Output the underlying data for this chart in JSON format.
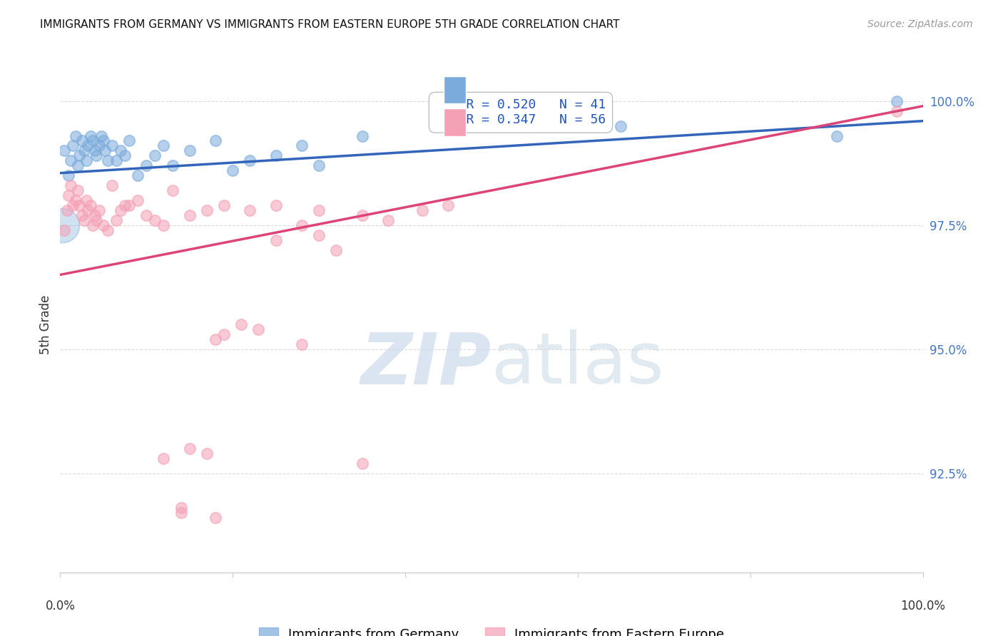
{
  "title": "IMMIGRANTS FROM GERMANY VS IMMIGRANTS FROM EASTERN EUROPE 5TH GRADE CORRELATION CHART",
  "source": "Source: ZipAtlas.com",
  "ylabel": "5th Grade",
  "xlim": [
    0.0,
    1.0
  ],
  "ylim": [
    90.5,
    100.5
  ],
  "blue_scatter_x": [
    0.005,
    0.01,
    0.012,
    0.015,
    0.018,
    0.02,
    0.022,
    0.025,
    0.028,
    0.03,
    0.032,
    0.035,
    0.038,
    0.04,
    0.042,
    0.045,
    0.048,
    0.05,
    0.052,
    0.055,
    0.06,
    0.065,
    0.07,
    0.075,
    0.08,
    0.09,
    0.1,
    0.11,
    0.12,
    0.13,
    0.15,
    0.18,
    0.2,
    0.22,
    0.25,
    0.28,
    0.3,
    0.35,
    0.65,
    0.9,
    0.97
  ],
  "blue_scatter_y": [
    99.0,
    98.5,
    98.8,
    99.1,
    99.3,
    98.7,
    98.9,
    99.2,
    99.0,
    98.8,
    99.1,
    99.3,
    99.2,
    99.0,
    98.9,
    99.1,
    99.3,
    99.2,
    99.0,
    98.8,
    99.1,
    98.8,
    99.0,
    98.9,
    99.2,
    98.5,
    98.7,
    98.9,
    99.1,
    98.7,
    99.0,
    99.2,
    98.6,
    98.8,
    98.9,
    99.1,
    98.7,
    99.3,
    99.5,
    99.3,
    100.0
  ],
  "pink_scatter_x": [
    0.005,
    0.008,
    0.01,
    0.012,
    0.015,
    0.018,
    0.02,
    0.022,
    0.025,
    0.028,
    0.03,
    0.032,
    0.035,
    0.038,
    0.04,
    0.042,
    0.045,
    0.05,
    0.055,
    0.06,
    0.065,
    0.07,
    0.075,
    0.08,
    0.09,
    0.1,
    0.11,
    0.12,
    0.13,
    0.15,
    0.17,
    0.19,
    0.22,
    0.25,
    0.28,
    0.3,
    0.35,
    0.38,
    0.42,
    0.45,
    0.25,
    0.3,
    0.32,
    0.18,
    0.21,
    0.19,
    0.23,
    0.28,
    0.15,
    0.17,
    0.35,
    0.12,
    0.14,
    0.97,
    0.14,
    0.18
  ],
  "pink_scatter_y": [
    97.4,
    97.8,
    98.1,
    98.3,
    97.9,
    98.0,
    98.2,
    97.9,
    97.7,
    97.6,
    98.0,
    97.8,
    97.9,
    97.5,
    97.7,
    97.6,
    97.8,
    97.5,
    97.4,
    98.3,
    97.6,
    97.8,
    97.9,
    97.9,
    98.0,
    97.7,
    97.6,
    97.5,
    98.2,
    97.7,
    97.8,
    97.9,
    97.8,
    97.9,
    97.5,
    97.8,
    97.7,
    97.6,
    97.8,
    97.9,
    97.2,
    97.3,
    97.0,
    95.2,
    95.5,
    95.3,
    95.4,
    95.1,
    93.0,
    92.9,
    92.7,
    92.8,
    91.8,
    99.8,
    91.7,
    91.6
  ],
  "blue_line_x": [
    0.0,
    1.0
  ],
  "blue_line_y": [
    98.55,
    99.6
  ],
  "pink_line_x": [
    0.0,
    1.0
  ],
  "pink_line_y": [
    96.5,
    99.9
  ],
  "blue_color": "#7aabdb",
  "pink_color": "#f4a0b5",
  "blue_line_color": "#3366bb",
  "pink_line_color": "#dd4477",
  "background_color": "#ffffff",
  "grid_color": "#cccccc",
  "legend_label1": "Immigrants from Germany",
  "legend_label2": "Immigrants from Eastern Europe",
  "ytick_vals": [
    92.5,
    95.0,
    97.5,
    100.0
  ]
}
